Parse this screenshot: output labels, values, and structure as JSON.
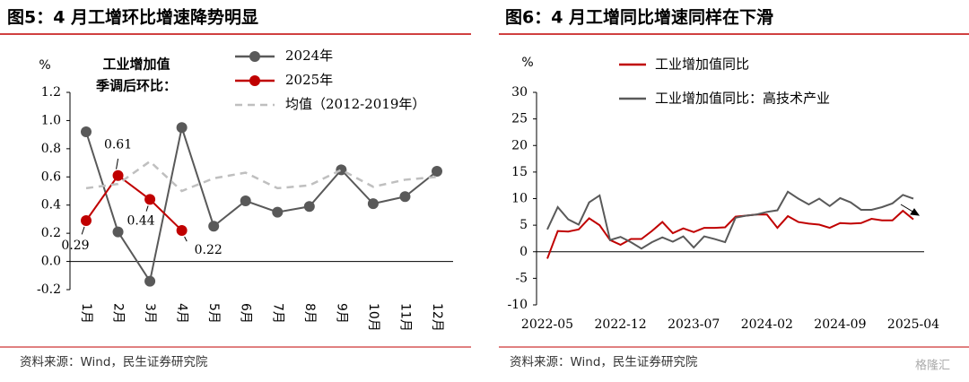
{
  "chart_data": [
    {
      "type": "line",
      "title": "图5：4 月工增环比增速降势明显",
      "y_unit": "%",
      "annotation_lines": [
        "工业增加值",
        "季调后环比："
      ],
      "categories": [
        "1月",
        "2月",
        "3月",
        "4月",
        "5月",
        "6月",
        "7月",
        "8月",
        "9月",
        "10月",
        "11月",
        "12月"
      ],
      "series": [
        {
          "name": "2024年",
          "color": "#595959",
          "marker": true,
          "values": [
            0.92,
            0.21,
            -0.14,
            0.95,
            0.25,
            0.43,
            0.35,
            0.39,
            0.65,
            0.41,
            0.46,
            0.64
          ]
        },
        {
          "name": "2025年",
          "color": "#c00000",
          "marker": true,
          "data_labels": true,
          "values": [
            0.29,
            0.61,
            0.44,
            0.22,
            null,
            null,
            null,
            null,
            null,
            null,
            null,
            null
          ]
        },
        {
          "name": "均值（2012-2019年）",
          "color": "#bfbfbf",
          "dashed": true,
          "values": [
            0.52,
            0.55,
            0.71,
            0.5,
            0.59,
            0.63,
            0.52,
            0.54,
            0.65,
            0.53,
            0.58,
            0.6
          ]
        }
      ],
      "ylim": [
        -0.2,
        1.2
      ],
      "yticks": [
        -0.2,
        {
          "value": 0,
          "label": "0.0"
        },
        0.2,
        0.4,
        0.6,
        0.8,
        {
          "value": 1,
          "label": "1.0"
        },
        1.2
      ],
      "source": "资料来源：Wind，民生证券研究院"
    },
    {
      "type": "line",
      "title": "图6：4 月工增同比增速同样在下滑",
      "y_unit": "%",
      "categories": [
        "2022-05",
        null,
        null,
        null,
        null,
        null,
        null,
        "2022-12",
        null,
        null,
        null,
        null,
        null,
        null,
        "2023-07",
        null,
        null,
        null,
        null,
        null,
        null,
        "2024-02",
        null,
        null,
        null,
        null,
        null,
        null,
        "2024-09",
        null,
        null,
        null,
        null,
        null,
        null,
        "2025-04"
      ],
      "series": [
        {
          "name": "工业增加值同比",
          "color": "#c00000",
          "values": [
            -1.3,
            3.9,
            3.8,
            4.2,
            6.3,
            5.0,
            2.2,
            1.3,
            2.4,
            2.4,
            3.9,
            5.6,
            3.5,
            4.4,
            3.7,
            4.5,
            4.5,
            4.6,
            6.6,
            6.8,
            7.0,
            7.0,
            4.5,
            6.7,
            5.6,
            5.3,
            5.1,
            4.5,
            5.4,
            5.3,
            5.4,
            6.2,
            5.9,
            5.9,
            7.7,
            6.1
          ]
        },
        {
          "name": "工业增加值同比：高技术产业",
          "color": "#595959",
          "values": [
            4.2,
            8.4,
            6.1,
            5.1,
            9.3,
            10.6,
            2.2,
            2.8,
            1.8,
            0.6,
            1.8,
            2.7,
            1.9,
            2.9,
            0.8,
            2.9,
            2.4,
            1.8,
            6.4,
            6.8,
            7.0,
            7.5,
            7.8,
            11.3,
            10.0,
            8.9,
            10.0,
            8.6,
            10.1,
            9.3,
            7.9,
            7.9,
            8.4,
            9.1,
            10.7,
            10.0
          ]
        }
      ],
      "ylim": [
        -10,
        30
      ],
      "yticks": [
        -10,
        -5,
        0,
        5,
        10,
        15,
        20,
        25,
        30
      ],
      "source": "资料来源：Wind，民生证券研究院",
      "watermark": "格隆汇"
    }
  ]
}
